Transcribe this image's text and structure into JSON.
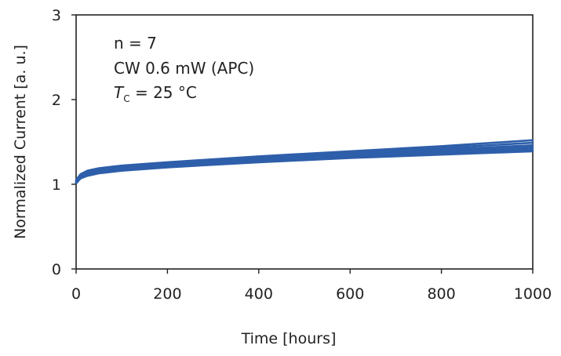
{
  "chart_data": {
    "type": "line",
    "title": "",
    "xlabel": "Time [hours]",
    "ylabel": "Normalized Current [a. u.]",
    "xlim": [
      0,
      1000
    ],
    "ylim": [
      0,
      3
    ],
    "xticks": [
      "0",
      "200",
      "400",
      "600",
      "800",
      "1000"
    ],
    "yticks": [
      "0",
      "1",
      "2",
      "3"
    ],
    "grid": false,
    "line_color": "#2E5FAA",
    "annotations": {
      "line1": "n = 7",
      "line2": "CW 0.6 mW (APC)",
      "line3_var": "T",
      "line3_sub": "C",
      "line3_rest": " = 25 °C"
    },
    "series": [
      {
        "x": [
          0,
          10,
          25,
          50,
          100,
          200,
          400,
          600,
          800,
          1000
        ],
        "y": [
          1.05,
          1.12,
          1.16,
          1.19,
          1.22,
          1.26,
          1.33,
          1.39,
          1.45,
          1.52
        ]
      },
      {
        "x": [
          0,
          10,
          25,
          50,
          100,
          200,
          400,
          600,
          800,
          1000
        ],
        "y": [
          1.04,
          1.11,
          1.15,
          1.18,
          1.21,
          1.25,
          1.31,
          1.37,
          1.43,
          1.49
        ]
      },
      {
        "x": [
          0,
          10,
          25,
          50,
          100,
          200,
          400,
          600,
          800,
          1000
        ],
        "y": [
          1.03,
          1.1,
          1.14,
          1.17,
          1.2,
          1.24,
          1.3,
          1.36,
          1.41,
          1.46
        ]
      },
      {
        "x": [
          0,
          10,
          25,
          50,
          100,
          200,
          400,
          600,
          800,
          1000
        ],
        "y": [
          1.03,
          1.09,
          1.13,
          1.16,
          1.19,
          1.23,
          1.29,
          1.34,
          1.39,
          1.44
        ]
      },
      {
        "x": [
          0,
          10,
          25,
          50,
          100,
          200,
          400,
          600,
          800,
          1000
        ],
        "y": [
          1.02,
          1.08,
          1.12,
          1.15,
          1.18,
          1.22,
          1.28,
          1.33,
          1.38,
          1.42
        ]
      },
      {
        "x": [
          0,
          10,
          25,
          50,
          100,
          200,
          400,
          600,
          800,
          1000
        ],
        "y": [
          1.02,
          1.07,
          1.11,
          1.14,
          1.17,
          1.21,
          1.27,
          1.32,
          1.36,
          1.4
        ]
      },
      {
        "x": [
          0,
          10,
          25,
          50,
          100,
          200,
          400,
          600,
          800,
          1000
        ],
        "y": [
          1.01,
          1.07,
          1.1,
          1.13,
          1.16,
          1.2,
          1.26,
          1.31,
          1.35,
          1.39
        ]
      }
    ]
  }
}
